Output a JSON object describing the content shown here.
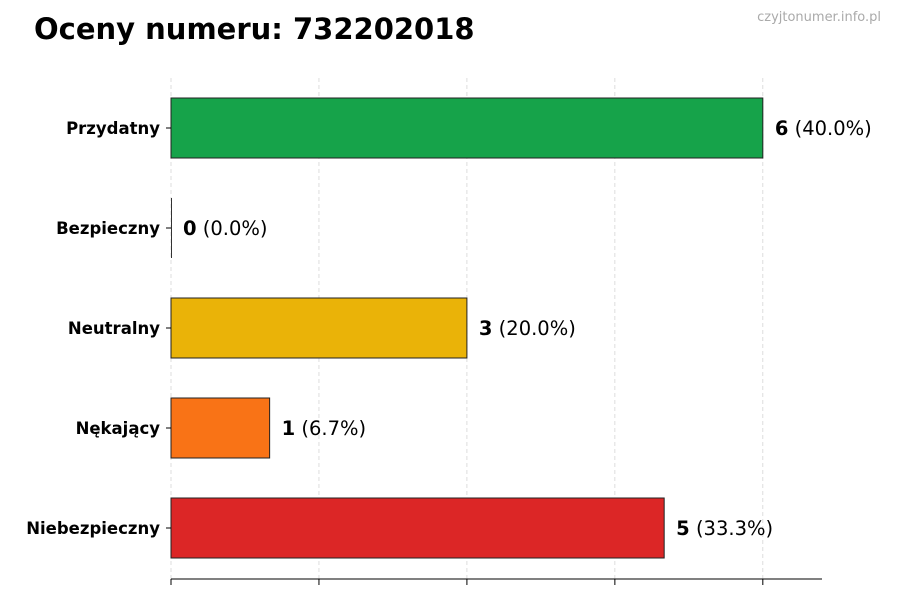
{
  "title": "Oceny numeru: 732202018",
  "watermark": "czyjtonumer.info.pl",
  "chart_data": {
    "type": "bar",
    "orientation": "horizontal",
    "categories": [
      "Przydatny",
      "Bezpieczny",
      "Neutralny",
      "Nękający",
      "Niebezpieczny"
    ],
    "values": [
      6,
      0,
      3,
      1,
      5
    ],
    "value_labels": [
      "6",
      "0",
      "3",
      "1",
      "5"
    ],
    "percent_labels": [
      "(40.0%)",
      "(0.0%)",
      "(20.0%)",
      "(6.7%)",
      "(33.3%)"
    ],
    "colors": [
      "#16a34a",
      "#15803d",
      "#eab308",
      "#f97316",
      "#dc2626"
    ],
    "xlim": [
      0,
      6.6
    ],
    "x_ticks": [
      0,
      1.5,
      3,
      4.5,
      6
    ],
    "grid": "vertical-dashed",
    "title": "Oceny numeru: 732202018",
    "xlabel": "",
    "ylabel": ""
  }
}
